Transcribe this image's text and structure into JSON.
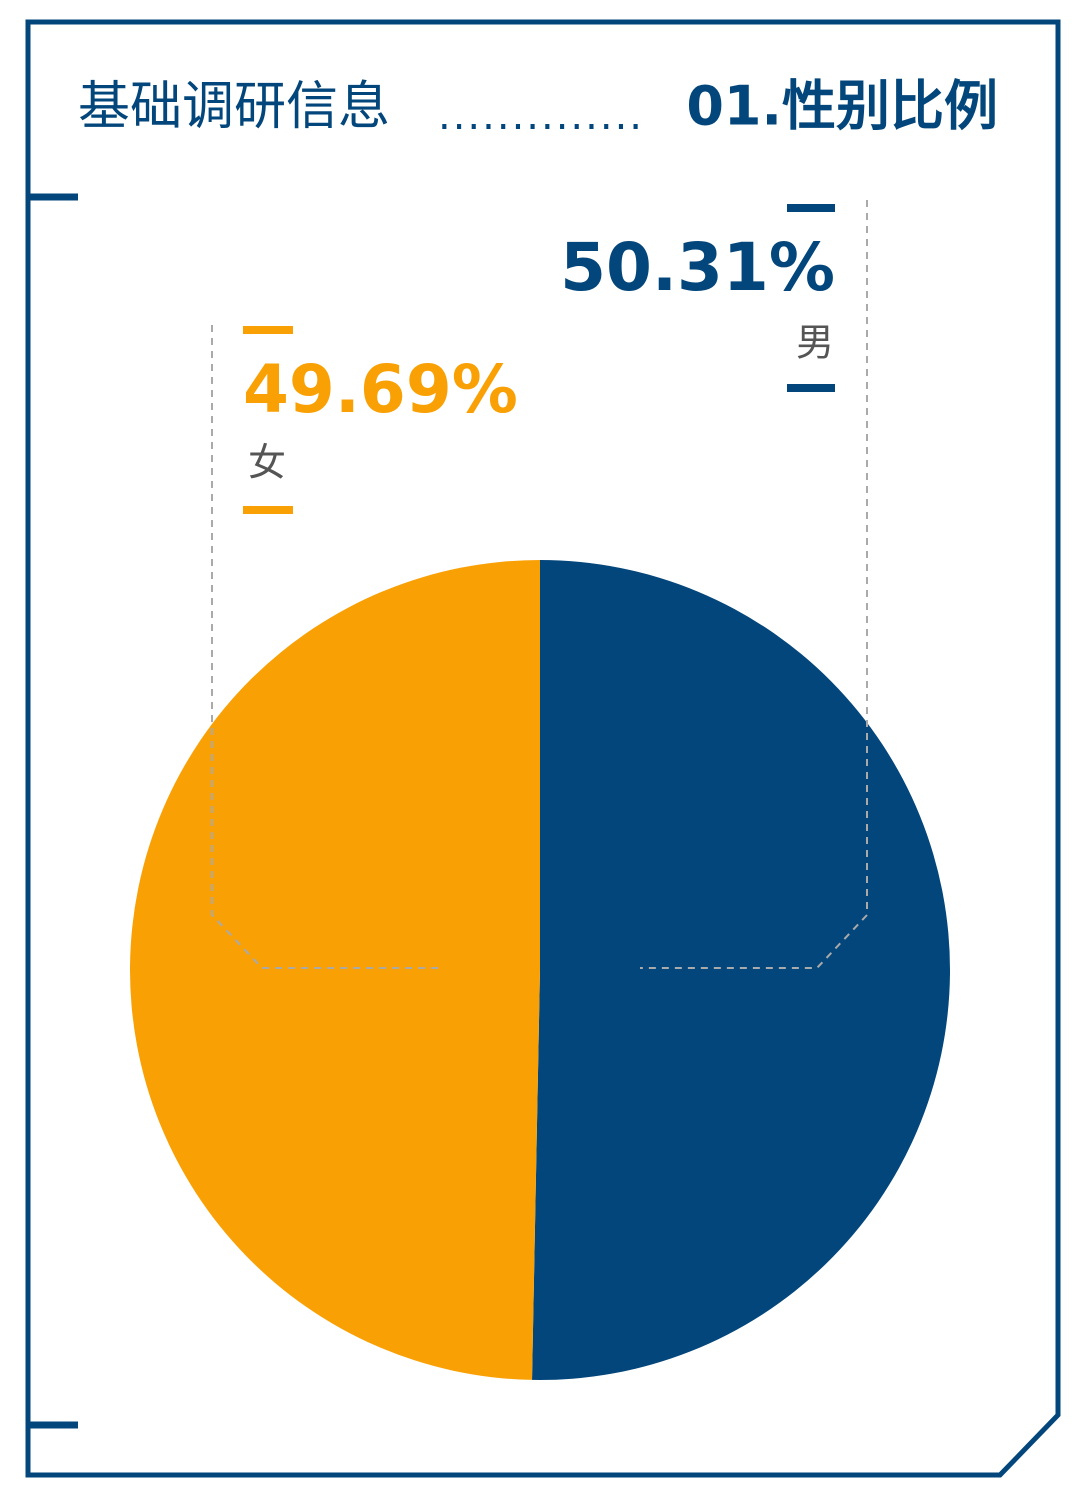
{
  "chart_data": {
    "type": "pie",
    "title": "基础调研信息",
    "leader": "..............",
    "subtitle": "01.性别比例",
    "categories": [
      "男",
      "女"
    ],
    "values": [
      50.31,
      49.69
    ],
    "value_labels": [
      "50.31%",
      "49.69%"
    ],
    "colors": [
      "#03467b",
      "#f9a005"
    ]
  }
}
